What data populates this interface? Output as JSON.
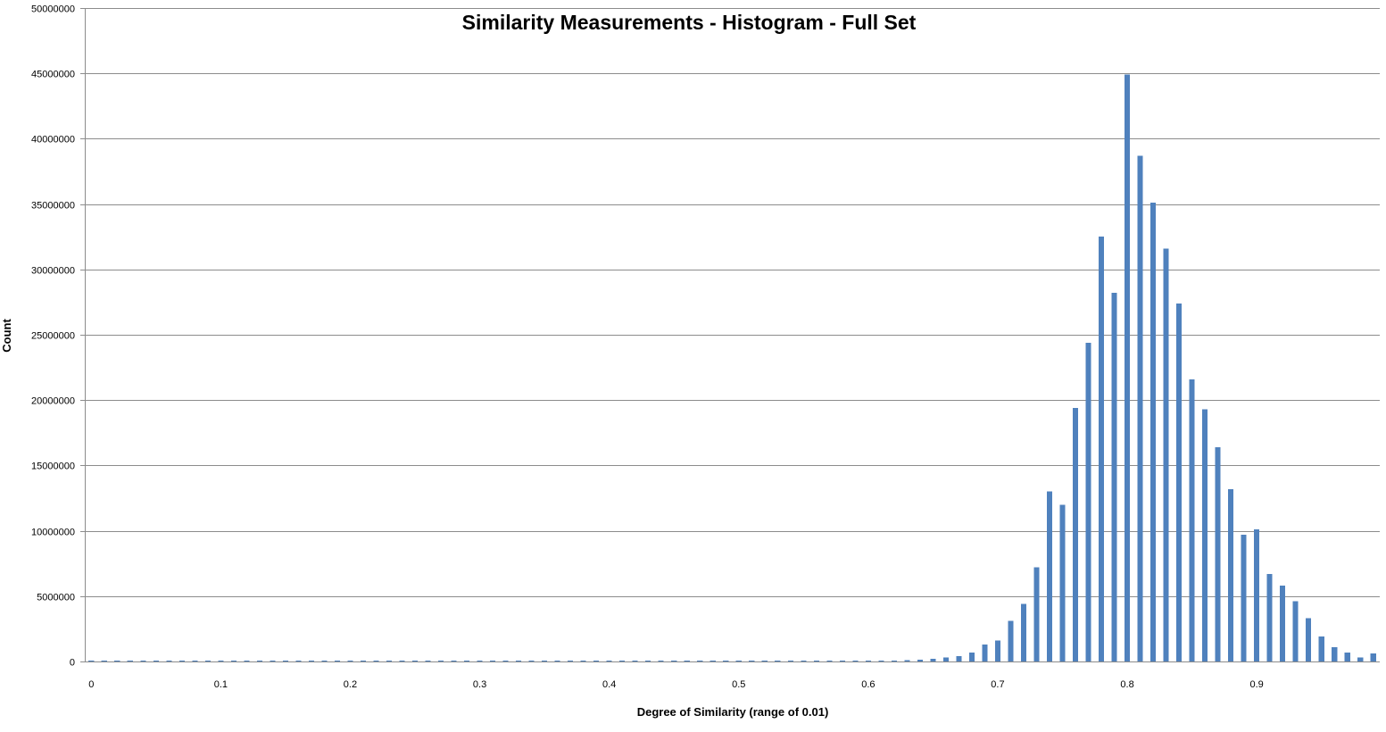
{
  "chart_data": {
    "type": "bar",
    "title": "Similarity Measurements - Histogram - Full Set",
    "xlabel": "Degree of Similarity (range of 0.01)",
    "ylabel": "Count",
    "ylim": [
      0,
      50000000
    ],
    "y_ticks": [
      "0",
      "5000000",
      "10000000",
      "15000000",
      "20000000",
      "25000000",
      "30000000",
      "35000000",
      "40000000",
      "45000000",
      "50000000"
    ],
    "x_tick_labels": [
      "0",
      "0.1",
      "0.2",
      "0.3",
      "0.4",
      "0.5",
      "0.6",
      "0.7",
      "0.8",
      "0.9"
    ],
    "bin_width": 0.01,
    "bins": [
      0,
      0.01,
      0.02,
      0.03,
      0.04,
      0.05,
      0.06,
      0.07,
      0.08,
      0.09,
      0.1,
      0.11,
      0.12,
      0.13,
      0.14,
      0.15,
      0.16,
      0.17,
      0.18,
      0.19,
      0.2,
      0.21,
      0.22,
      0.23,
      0.24,
      0.25,
      0.26,
      0.27,
      0.28,
      0.29,
      0.3,
      0.31,
      0.32,
      0.33,
      0.34,
      0.35,
      0.36,
      0.37,
      0.38,
      0.39,
      0.4,
      0.41,
      0.42,
      0.43,
      0.44,
      0.45,
      0.46,
      0.47,
      0.48,
      0.49,
      0.5,
      0.51,
      0.52,
      0.53,
      0.54,
      0.55,
      0.56,
      0.57,
      0.58,
      0.59,
      0.6,
      0.61,
      0.62,
      0.63,
      0.64,
      0.65,
      0.66,
      0.67,
      0.68,
      0.69,
      0.7,
      0.71,
      0.72,
      0.73,
      0.74,
      0.75,
      0.76,
      0.77,
      0.78,
      0.79,
      0.8,
      0.81,
      0.82,
      0.83,
      0.84,
      0.85,
      0.86,
      0.87,
      0.88,
      0.89,
      0.9,
      0.91,
      0.92,
      0.93,
      0.94,
      0.95,
      0.96,
      0.97,
      0.98,
      0.99
    ],
    "values": [
      50000,
      20000,
      20000,
      20000,
      20000,
      20000,
      20000,
      20000,
      20000,
      80000,
      20000,
      20000,
      80000,
      20000,
      20000,
      20000,
      80000,
      20000,
      80000,
      20000,
      80000,
      80000,
      80000,
      80000,
      80000,
      80000,
      80000,
      80000,
      80000,
      80000,
      80000,
      80000,
      80000,
      80000,
      80000,
      80000,
      80000,
      80000,
      80000,
      80000,
      80000,
      80000,
      80000,
      80000,
      80000,
      80000,
      80000,
      80000,
      80000,
      80000,
      80000,
      80000,
      80000,
      80000,
      80000,
      80000,
      80000,
      80000,
      80000,
      80000,
      80000,
      80000,
      80000,
      100000,
      150000,
      200000,
      300000,
      400000,
      700000,
      1300000,
      1600000,
      3100000,
      4400000,
      7200000,
      13000000,
      12000000,
      19400000,
      24400000,
      32500000,
      28200000,
      44900000,
      38700000,
      35100000,
      31600000,
      27400000,
      21600000,
      19300000,
      16400000,
      13200000,
      9700000,
      10100000,
      6700000,
      5800000,
      4600000,
      3300000,
      1900000,
      1100000,
      700000,
      300000,
      600000
    ],
    "grid": true,
    "legend": "none"
  }
}
